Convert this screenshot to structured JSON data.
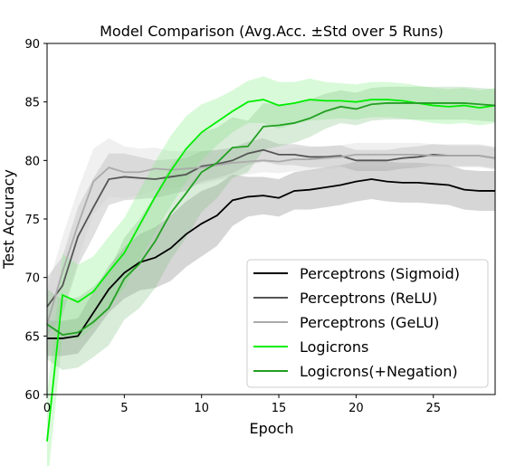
{
  "chart_data": {
    "type": "line",
    "title": "Model Comparison (Avg.Acc. ±Std over 5 Runs)",
    "xlabel": "Epoch",
    "ylabel": "Test Accuracy",
    "xlim": [
      0,
      29
    ],
    "ylim": [
      60,
      90
    ],
    "xticks": [
      0,
      5,
      10,
      15,
      20,
      25
    ],
    "yticks": [
      60,
      65,
      70,
      75,
      80,
      85,
      90
    ],
    "grid": false,
    "legend_position": "lower-right",
    "x": [
      0,
      1,
      2,
      3,
      4,
      5,
      6,
      7,
      8,
      9,
      10,
      11,
      12,
      13,
      14,
      15,
      16,
      17,
      18,
      19,
      20,
      21,
      22,
      23,
      24,
      25,
      26,
      27,
      28,
      29
    ],
    "series": [
      {
        "name": "Perceptrons (Sigmoid)",
        "color": "#000000",
        "band_color": "#777777",
        "values": [
          64.8,
          64.8,
          65.0,
          67.0,
          69.0,
          70.4,
          71.3,
          71.7,
          72.5,
          73.7,
          74.6,
          75.3,
          76.6,
          76.9,
          77.0,
          76.8,
          77.4,
          77.5,
          77.7,
          77.9,
          78.2,
          78.4,
          78.2,
          78.1,
          78.1,
          78.0,
          77.9,
          77.5,
          77.4,
          77.4
        ],
        "std": [
          1.5,
          1.5,
          1.5,
          1.8,
          2.0,
          2.2,
          2.4,
          2.6,
          2.8,
          2.8,
          2.8,
          2.6,
          2.2,
          1.7,
          1.6,
          1.6,
          1.6,
          1.7,
          1.7,
          1.7,
          1.7,
          1.7,
          1.7,
          1.7,
          1.7,
          1.7,
          1.7,
          1.7,
          1.7,
          1.7
        ]
      },
      {
        "name": "Perceptrons (ReLU)",
        "color": "#555555",
        "band_color": "#999999",
        "values": [
          67.5,
          69.3,
          73.5,
          76.0,
          78.4,
          78.6,
          78.5,
          78.4,
          78.6,
          78.8,
          79.5,
          79.7,
          80.0,
          80.6,
          80.9,
          80.5,
          80.5,
          80.3,
          80.3,
          80.4,
          80.0,
          80.0,
          80.0,
          80.2,
          80.3,
          80.5,
          80.4,
          80.4,
          80.4,
          80.2
        ],
        "std": [
          2.5,
          2.5,
          2.5,
          2.5,
          2.2,
          2.0,
          1.8,
          1.6,
          1.5,
          1.4,
          1.3,
          1.2,
          1.1,
          1.0,
          1.0,
          0.9,
          0.9,
          0.9,
          0.9,
          0.9,
          0.9,
          0.9,
          0.9,
          0.9,
          0.9,
          0.9,
          0.9,
          0.9,
          0.9,
          0.9
        ]
      },
      {
        "name": "Perceptrons (GeLU)",
        "color": "#aaaaaa",
        "band_color": "#cccccc",
        "values": [
          66.0,
          70.5,
          74.5,
          78.2,
          79.4,
          79.0,
          79.0,
          79.3,
          79.2,
          79.3,
          79.4,
          79.6,
          79.8,
          79.9,
          80.0,
          79.9,
          80.1,
          80.1,
          80.2,
          80.3,
          80.5,
          80.5,
          80.5,
          80.5,
          80.5,
          80.4,
          80.4,
          80.4,
          80.4,
          80.2
        ],
        "std": [
          3.0,
          3.0,
          3.0,
          2.8,
          2.5,
          2.2,
          2.0,
          1.8,
          1.6,
          1.5,
          1.4,
          1.3,
          1.2,
          1.1,
          1.0,
          1.0,
          1.0,
          1.0,
          1.0,
          1.0,
          1.0,
          1.0,
          1.0,
          1.0,
          1.0,
          1.0,
          1.0,
          1.0,
          1.0,
          1.0
        ]
      },
      {
        "name": "Logicrons",
        "color": "#00ee00",
        "band_color": "#80ee80",
        "values": [
          56.0,
          68.5,
          67.9,
          68.8,
          70.5,
          72.1,
          74.5,
          76.9,
          79.1,
          81.0,
          82.4,
          83.3,
          84.2,
          85.0,
          85.2,
          84.7,
          84.9,
          85.2,
          85.1,
          85.1,
          85.0,
          85.2,
          85.2,
          85.1,
          84.9,
          84.7,
          84.6,
          84.7,
          84.5,
          84.7
        ],
        "std": [
          4.0,
          3.5,
          3.2,
          3.0,
          3.0,
          3.0,
          3.0,
          3.0,
          3.0,
          2.8,
          2.4,
          2.0,
          1.8,
          1.8,
          2.0,
          2.0,
          1.8,
          1.8,
          1.6,
          1.5,
          1.5,
          1.5,
          1.5,
          1.5,
          1.5,
          1.5,
          1.5,
          1.5,
          1.5,
          1.5
        ]
      },
      {
        "name": "Logicrons(+Negation)",
        "color": "#22a022",
        "band_color": "#80c080",
        "values": [
          66.0,
          65.1,
          65.3,
          66.2,
          67.4,
          69.9,
          71.2,
          73.1,
          75.5,
          77.2,
          79.0,
          79.8,
          81.1,
          81.2,
          82.9,
          83.0,
          83.2,
          83.6,
          84.2,
          84.6,
          84.4,
          84.8,
          84.9,
          84.9,
          84.9,
          84.9,
          84.9,
          84.9,
          84.8,
          84.7
        ],
        "std": [
          3.0,
          3.0,
          3.0,
          3.0,
          3.2,
          3.5,
          3.8,
          4.0,
          4.0,
          3.8,
          3.4,
          3.0,
          2.6,
          2.2,
          2.0,
          1.8,
          1.7,
          1.6,
          1.5,
          1.4,
          1.4,
          1.4,
          1.4,
          1.4,
          1.4,
          1.4,
          1.4,
          1.4,
          1.4,
          1.4
        ]
      }
    ]
  }
}
